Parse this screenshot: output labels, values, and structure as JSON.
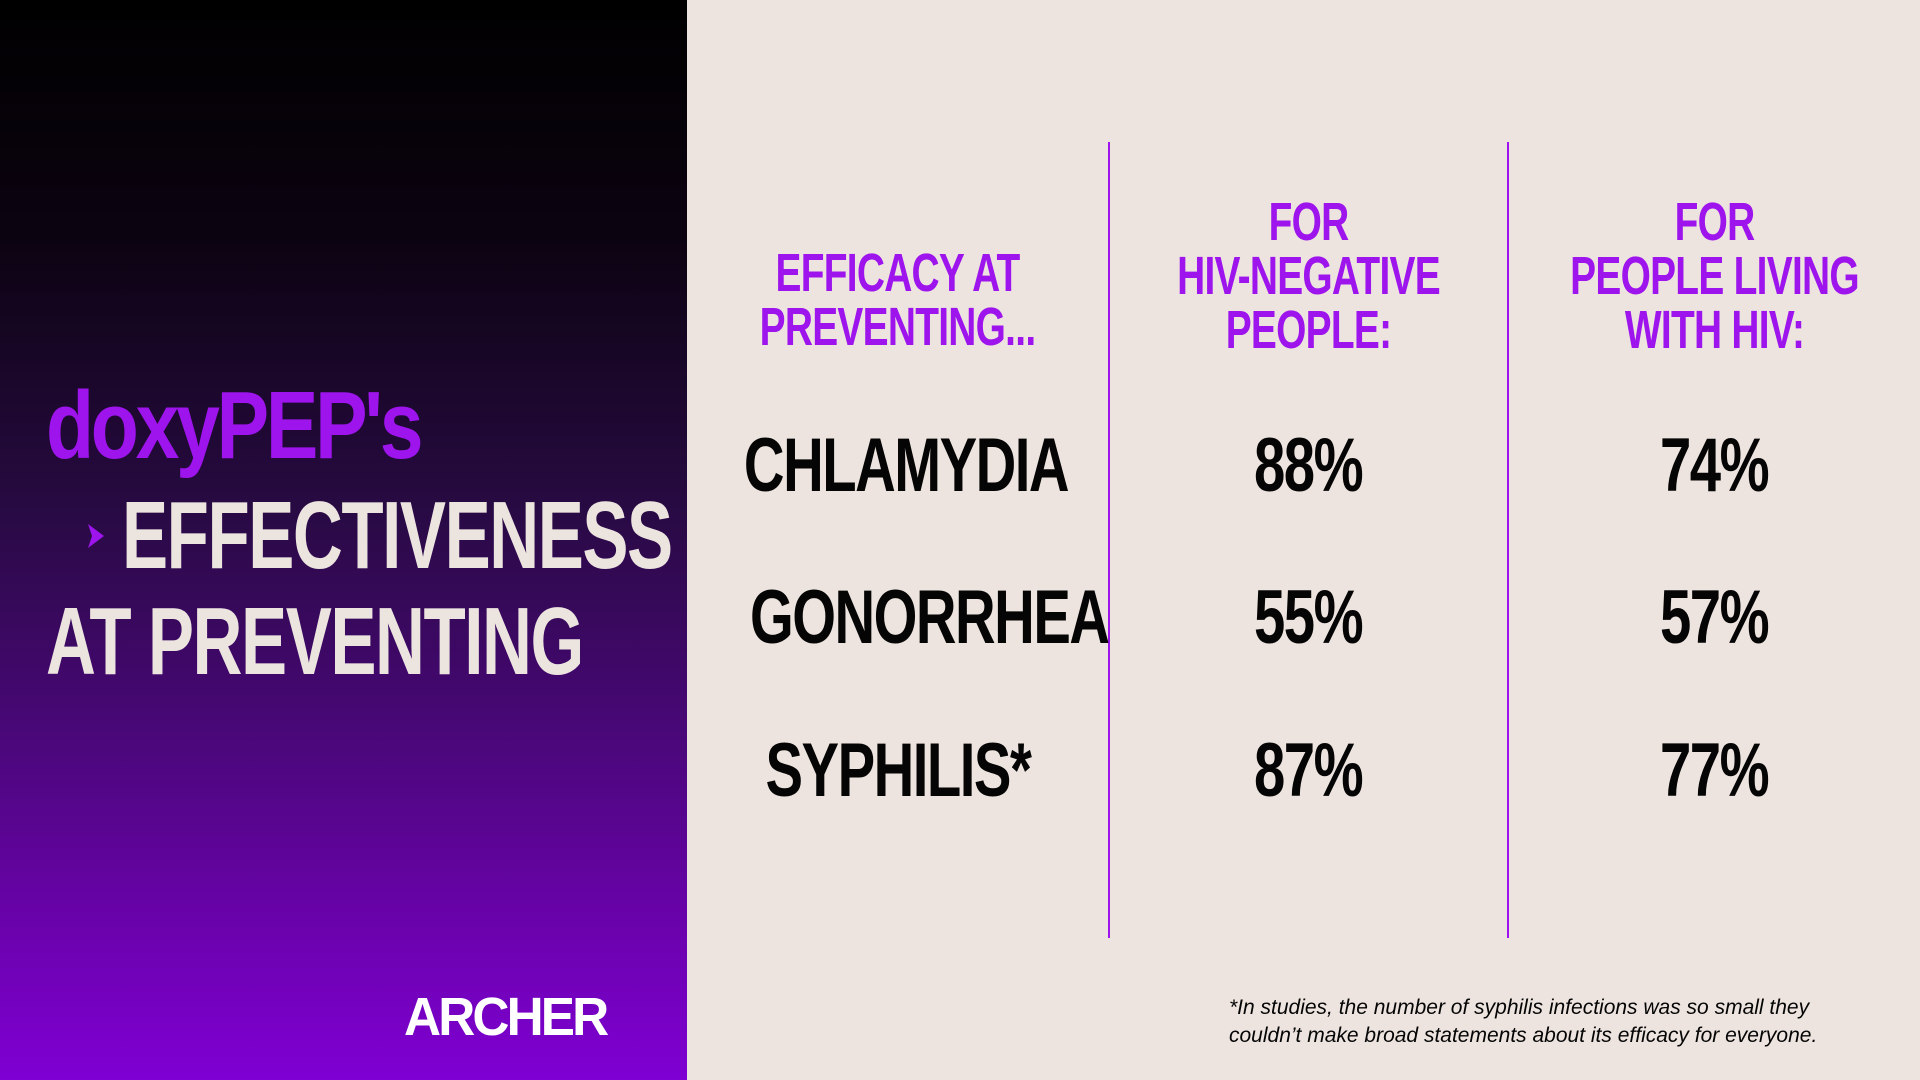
{
  "colors": {
    "accent": "#9d14ec",
    "title_light": "#ece4df",
    "background_right": "#ede4df",
    "text_dark": "#050505",
    "logo": "#ffffff"
  },
  "title": {
    "line1": "doxyPEP's",
    "line2": "EFFECTIVENESS",
    "line3": "AT PREVENTING",
    "bullet_icon": "chevron-right-icon"
  },
  "logo": {
    "text": "ARCHER"
  },
  "table": {
    "headers": [
      [
        "EFFICACY AT",
        "PREVENTING..."
      ],
      [
        "FOR",
        "HIV-NEGATIVE",
        "PEOPLE:"
      ],
      [
        "FOR",
        "PEOPLE LIVING",
        "WITH HIV:"
      ]
    ],
    "rows": [
      {
        "condition": "CHLAMYDIA",
        "hiv_negative": "88%",
        "living_with_hiv": "74%"
      },
      {
        "condition": "GONORRHEA",
        "hiv_negative": "55%",
        "living_with_hiv": "57%"
      },
      {
        "condition": "SYPHILIS*",
        "hiv_negative": "87%",
        "living_with_hiv": "77%"
      }
    ]
  },
  "footnote": {
    "line1": "*In studies, the number of syphilis infections was so small they",
    "line2": "couldn’t make broad statements about its efficacy for everyone."
  }
}
